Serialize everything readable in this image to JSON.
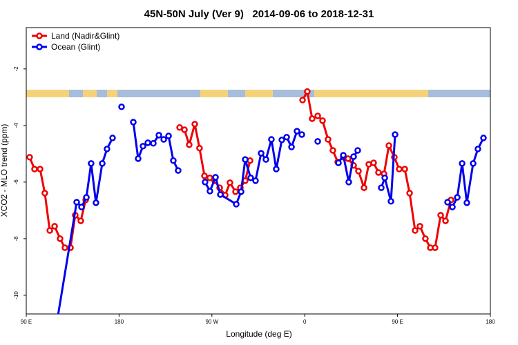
{
  "chart_data": {
    "type": "line",
    "title": "45N-50N July (Ver 9)   2014-09-06 to 2018-12-31",
    "x_label": "Longitude (deg E)",
    "y_label": "XCO2 - MLO trend (ppm)",
    "xlim": [
      90,
      540
    ],
    "ylim": [
      -10.66,
      -0.54
    ],
    "xticks": [
      {
        "value": 90,
        "label": "90 E"
      },
      180,
      {
        "value": 270,
        "label": "90 W"
      },
      {
        "value": 360,
        "label": "0"
      },
      {
        "value": 450,
        "label": "90 E"
      },
      {
        "value": 540,
        "label": "180"
      }
    ],
    "yticks": [
      -10,
      -8,
      -6,
      -4,
      -2
    ],
    "legend": "top-left",
    "series": [
      {
        "name": "Land (Nadir&Glint)",
        "color": "#ee0000",
        "x": [
          93.3,
          98,
          103.4,
          108,
          112.8,
          117.5,
          122.8,
          127.5,
          132.9,
          137.5,
          142.9,
          147.6,
          200,
          238.7,
          243.4,
          248,
          253.4,
          258,
          262.8,
          268,
          272.6,
          277.5,
          282.9,
          287.5,
          292.9,
          297.6,
          302.3,
          307,
          330,
          357.9,
          362.5,
          367.2,
          372.6,
          377.3,
          382.6,
          387.3,
          392,
          397.4,
          402,
          407.4,
          412.1,
          417.5,
          422.1,
          426.8,
          431.5,
          436.9,
          441.6,
          446.9,
          451.6,
          457,
          461.7,
          467,
          471.7,
          477,
          481.8,
          486.4,
          491.8,
          496.5,
          501.8
        ],
        "values": [
          -5.12,
          -5.54,
          -5.54,
          -6.39,
          -7.71,
          -7.56,
          -8.0,
          -8.32,
          -8.32,
          -7.17,
          -7.37,
          -6.63,
          null,
          -4.07,
          -4.15,
          -4.68,
          -3.95,
          -4.8,
          -5.78,
          -5.85,
          -5.95,
          -6.2,
          -6.46,
          -6.02,
          -6.34,
          -6.2,
          -5.95,
          -5.24,
          null,
          -3.1,
          -2.8,
          -3.76,
          -3.66,
          -3.83,
          -4.49,
          -4.88,
          -5.29,
          -5.12,
          -5.17,
          -5.41,
          -5.61,
          -6.2,
          -5.37,
          -5.32,
          -5.66,
          -5.71,
          -4.71,
          -5.12,
          -5.54,
          -5.54,
          -6.39,
          -7.71,
          -7.56,
          -8.0,
          -8.32,
          -8.32,
          -7.17,
          -7.37,
          -6.63
        ]
      },
      {
        "name": "Ocean (Glint)",
        "color": "#0000ee",
        "x": [
          119.4,
          138.9,
          143.6,
          148.3,
          152.9,
          157.6,
          163.7,
          168.3,
          173.7,
          178,
          182.4,
          188,
          193.8,
          198.5,
          203.2,
          207.9,
          213.2,
          218.6,
          223.3,
          228,
          232.6,
          237.3,
          250,
          263.4,
          268.1,
          273.5,
          278.2,
          293.6,
          298.3,
          302.3,
          307.6,
          312.3,
          317.7,
          322.4,
          327.7,
          332.4,
          337.8,
          342.5,
          347.2,
          352.5,
          357.2,
          365,
          372.6,
          380,
          392.7,
          397.4,
          402.7,
          407.4,
          411.4,
          420,
          434.2,
          437.6,
          443.6,
          447.6,
          470,
          498.5,
          503.2,
          507.9,
          512.6,
          517.2,
          523.3,
          527.9,
          533.3
        ],
        "values": [
          -11.02,
          -6.71,
          -6.88,
          -6.54,
          -5.34,
          -6.73,
          -5.34,
          -4.83,
          -4.44,
          null,
          -3.34,
          null,
          -3.88,
          -5.17,
          -4.73,
          -4.61,
          -4.63,
          -4.34,
          -4.49,
          -4.37,
          -5.24,
          -5.59,
          null,
          -6.0,
          -6.32,
          -5.83,
          -6.44,
          -6.78,
          -6.34,
          -5.2,
          -5.85,
          -5.95,
          -4.98,
          -5.2,
          -4.49,
          -5.54,
          -4.51,
          -4.41,
          -4.76,
          -4.2,
          -4.32,
          null,
          -4.56,
          null,
          -5.32,
          -5.05,
          -6.0,
          -5.1,
          -4.88,
          null,
          -6.2,
          -5.85,
          -6.68,
          -4.32,
          null,
          -6.71,
          -6.88,
          -6.54,
          -5.34,
          -6.73,
          -5.34,
          -4.83,
          -4.44
        ]
      }
    ]
  }
}
